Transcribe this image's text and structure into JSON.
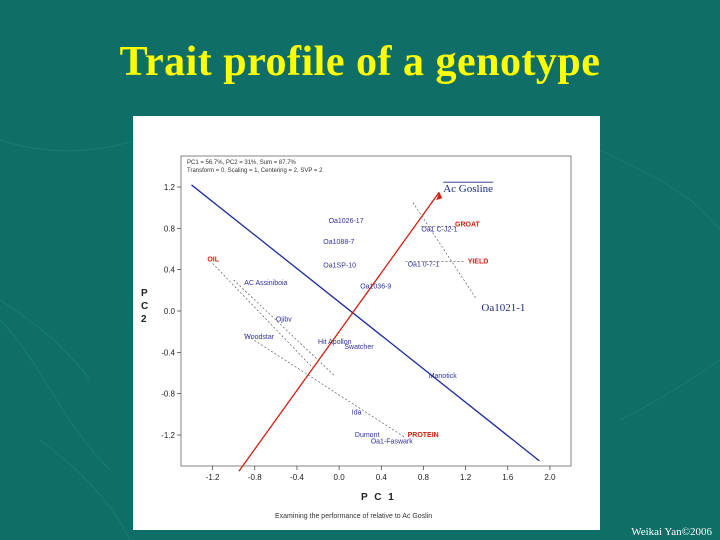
{
  "slide": {
    "title": "Trait profile of a genotype",
    "copyright": "Weikai Yan©2006"
  },
  "colors": {
    "background": "#0f6e67",
    "title": "#ffff00",
    "genotype_axis": "#1a2a9a",
    "trait_axis": "#d02010",
    "projection": "#444444"
  },
  "chart_data": {
    "type": "scatter",
    "info_line1": "PC1 = 56.7%, PC2 = 31%, Sum = 87.7%",
    "info_line2": "Transform = 0, Scaling = 1, Centering = 2, SVP = 2",
    "xlabel": "P C 1",
    "ylabel": "P\nC\n2",
    "caption": "Examining the performance of relative to Ac Goslin",
    "xlim": [
      -1.5,
      2.2
    ],
    "ylim": [
      -1.5,
      1.5
    ],
    "x_ticks": [
      "-1.2",
      "-0.8",
      "-0.4",
      "0.0",
      "0.4",
      "0.8",
      "1.2",
      "1.6",
      "2.0"
    ],
    "y_ticks": [
      "1.2",
      "0.8",
      "0.4",
      "0.0",
      "-0.4",
      "-0.8",
      "-1.2"
    ],
    "x_tick_values": [
      -1.2,
      -0.8,
      -0.4,
      0.0,
      0.4,
      0.8,
      1.2,
      1.6,
      2.0
    ],
    "y_tick_values": [
      1.2,
      0.8,
      0.4,
      0.0,
      -0.4,
      -0.8,
      -1.2
    ],
    "reference_genotype": {
      "name": "Ac Gosline",
      "x": 0.95,
      "y": 1.15
    },
    "genotype_axis": {
      "x1": -1.4,
      "y1": 1.22,
      "x2": 1.9,
      "y2": -1.45
    },
    "trait_axis": {
      "x1": -0.95,
      "y1": -1.55,
      "x2": 0.95,
      "y2": 1.15
    },
    "genotypes": [
      {
        "name": "Oa1026-17",
        "x": -0.1,
        "y": 0.85
      },
      {
        "name": "Oa1088-7",
        "x": -0.15,
        "y": 0.65
      },
      {
        "name": "Oa1SP-10",
        "x": -0.15,
        "y": 0.42
      },
      {
        "name": "AC Assiniboia",
        "x": -0.9,
        "y": 0.25
      },
      {
        "name": "Oa1036-9",
        "x": 0.2,
        "y": 0.22
      },
      {
        "name": "Oa1021-1",
        "x": 1.35,
        "y": 0.0
      },
      {
        "name": "Ojibv",
        "x": -0.6,
        "y": -0.1
      },
      {
        "name": "Woodstar",
        "x": -0.9,
        "y": -0.27
      },
      {
        "name": "Hit Apollon",
        "x": -0.2,
        "y": -0.32
      },
      {
        "name": "Swatcher",
        "x": 0.05,
        "y": -0.37
      },
      {
        "name": "Manotick",
        "x": 0.85,
        "y": -0.65
      },
      {
        "name": "Ida",
        "x": 0.12,
        "y": -1.0
      },
      {
        "name": "Dumont",
        "x": 0.15,
        "y": -1.22
      },
      {
        "name": "Oa1-Faswark",
        "x": 0.3,
        "y": -1.28
      },
      {
        "name": "Oa1 C-J2-1",
        "x": 0.78,
        "y": 0.77
      },
      {
        "name": "Oa1 0-7-1",
        "x": 0.65,
        "y": 0.43
      }
    ],
    "traits": [
      {
        "name": "GROAT",
        "x": 1.1,
        "y": 0.82
      },
      {
        "name": "YIELD",
        "x": 1.22,
        "y": 0.46
      },
      {
        "name": "OIL",
        "x": -1.25,
        "y": 0.48
      },
      {
        "name": "PROTEIN",
        "x": 0.65,
        "y": -1.22
      }
    ],
    "projections": [
      {
        "x1": 0.78,
        "y1": 0.82,
        "x2": 1.1,
        "y2": 0.82
      },
      {
        "x1": 0.63,
        "y1": 0.48,
        "x2": 1.2,
        "y2": 0.48
      },
      {
        "x1": -1.2,
        "y1": 0.46,
        "x2": -0.25,
        "y2": -0.55
      },
      {
        "x1": -1.0,
        "y1": 0.3,
        "x2": -0.05,
        "y2": -0.62
      },
      {
        "x1": -0.9,
        "y1": -0.22,
        "x2": 0.62,
        "y2": -1.22
      },
      {
        "x1": 0.7,
        "y1": 1.05,
        "x2": 1.3,
        "y2": 0.12
      }
    ]
  }
}
